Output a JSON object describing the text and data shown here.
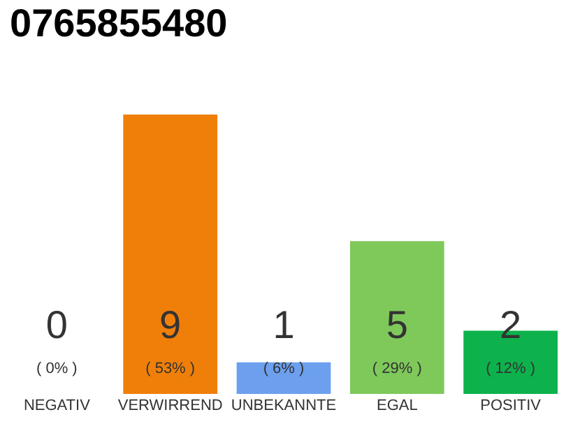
{
  "chart_data": {
    "type": "bar",
    "title": "0765855480",
    "categories": [
      "NEGATIV",
      "VERWIRREND",
      "UNBEKANNTE",
      "EGAL",
      "POSITIV"
    ],
    "values": [
      0,
      53,
      6,
      29,
      12
    ],
    "colors": [
      "#555555",
      "#f07f0a",
      "#6ca0ef",
      "#7ec95a",
      "#0db24c"
    ],
    "value_labels": [
      "( 0% )",
      "( 53% )",
      "( 6% )",
      "( 29% )",
      "( 12% )"
    ],
    "annotations": [
      "0",
      "9",
      "1",
      "5",
      "2"
    ],
    "tick_labels": "x",
    "grid": false
  }
}
